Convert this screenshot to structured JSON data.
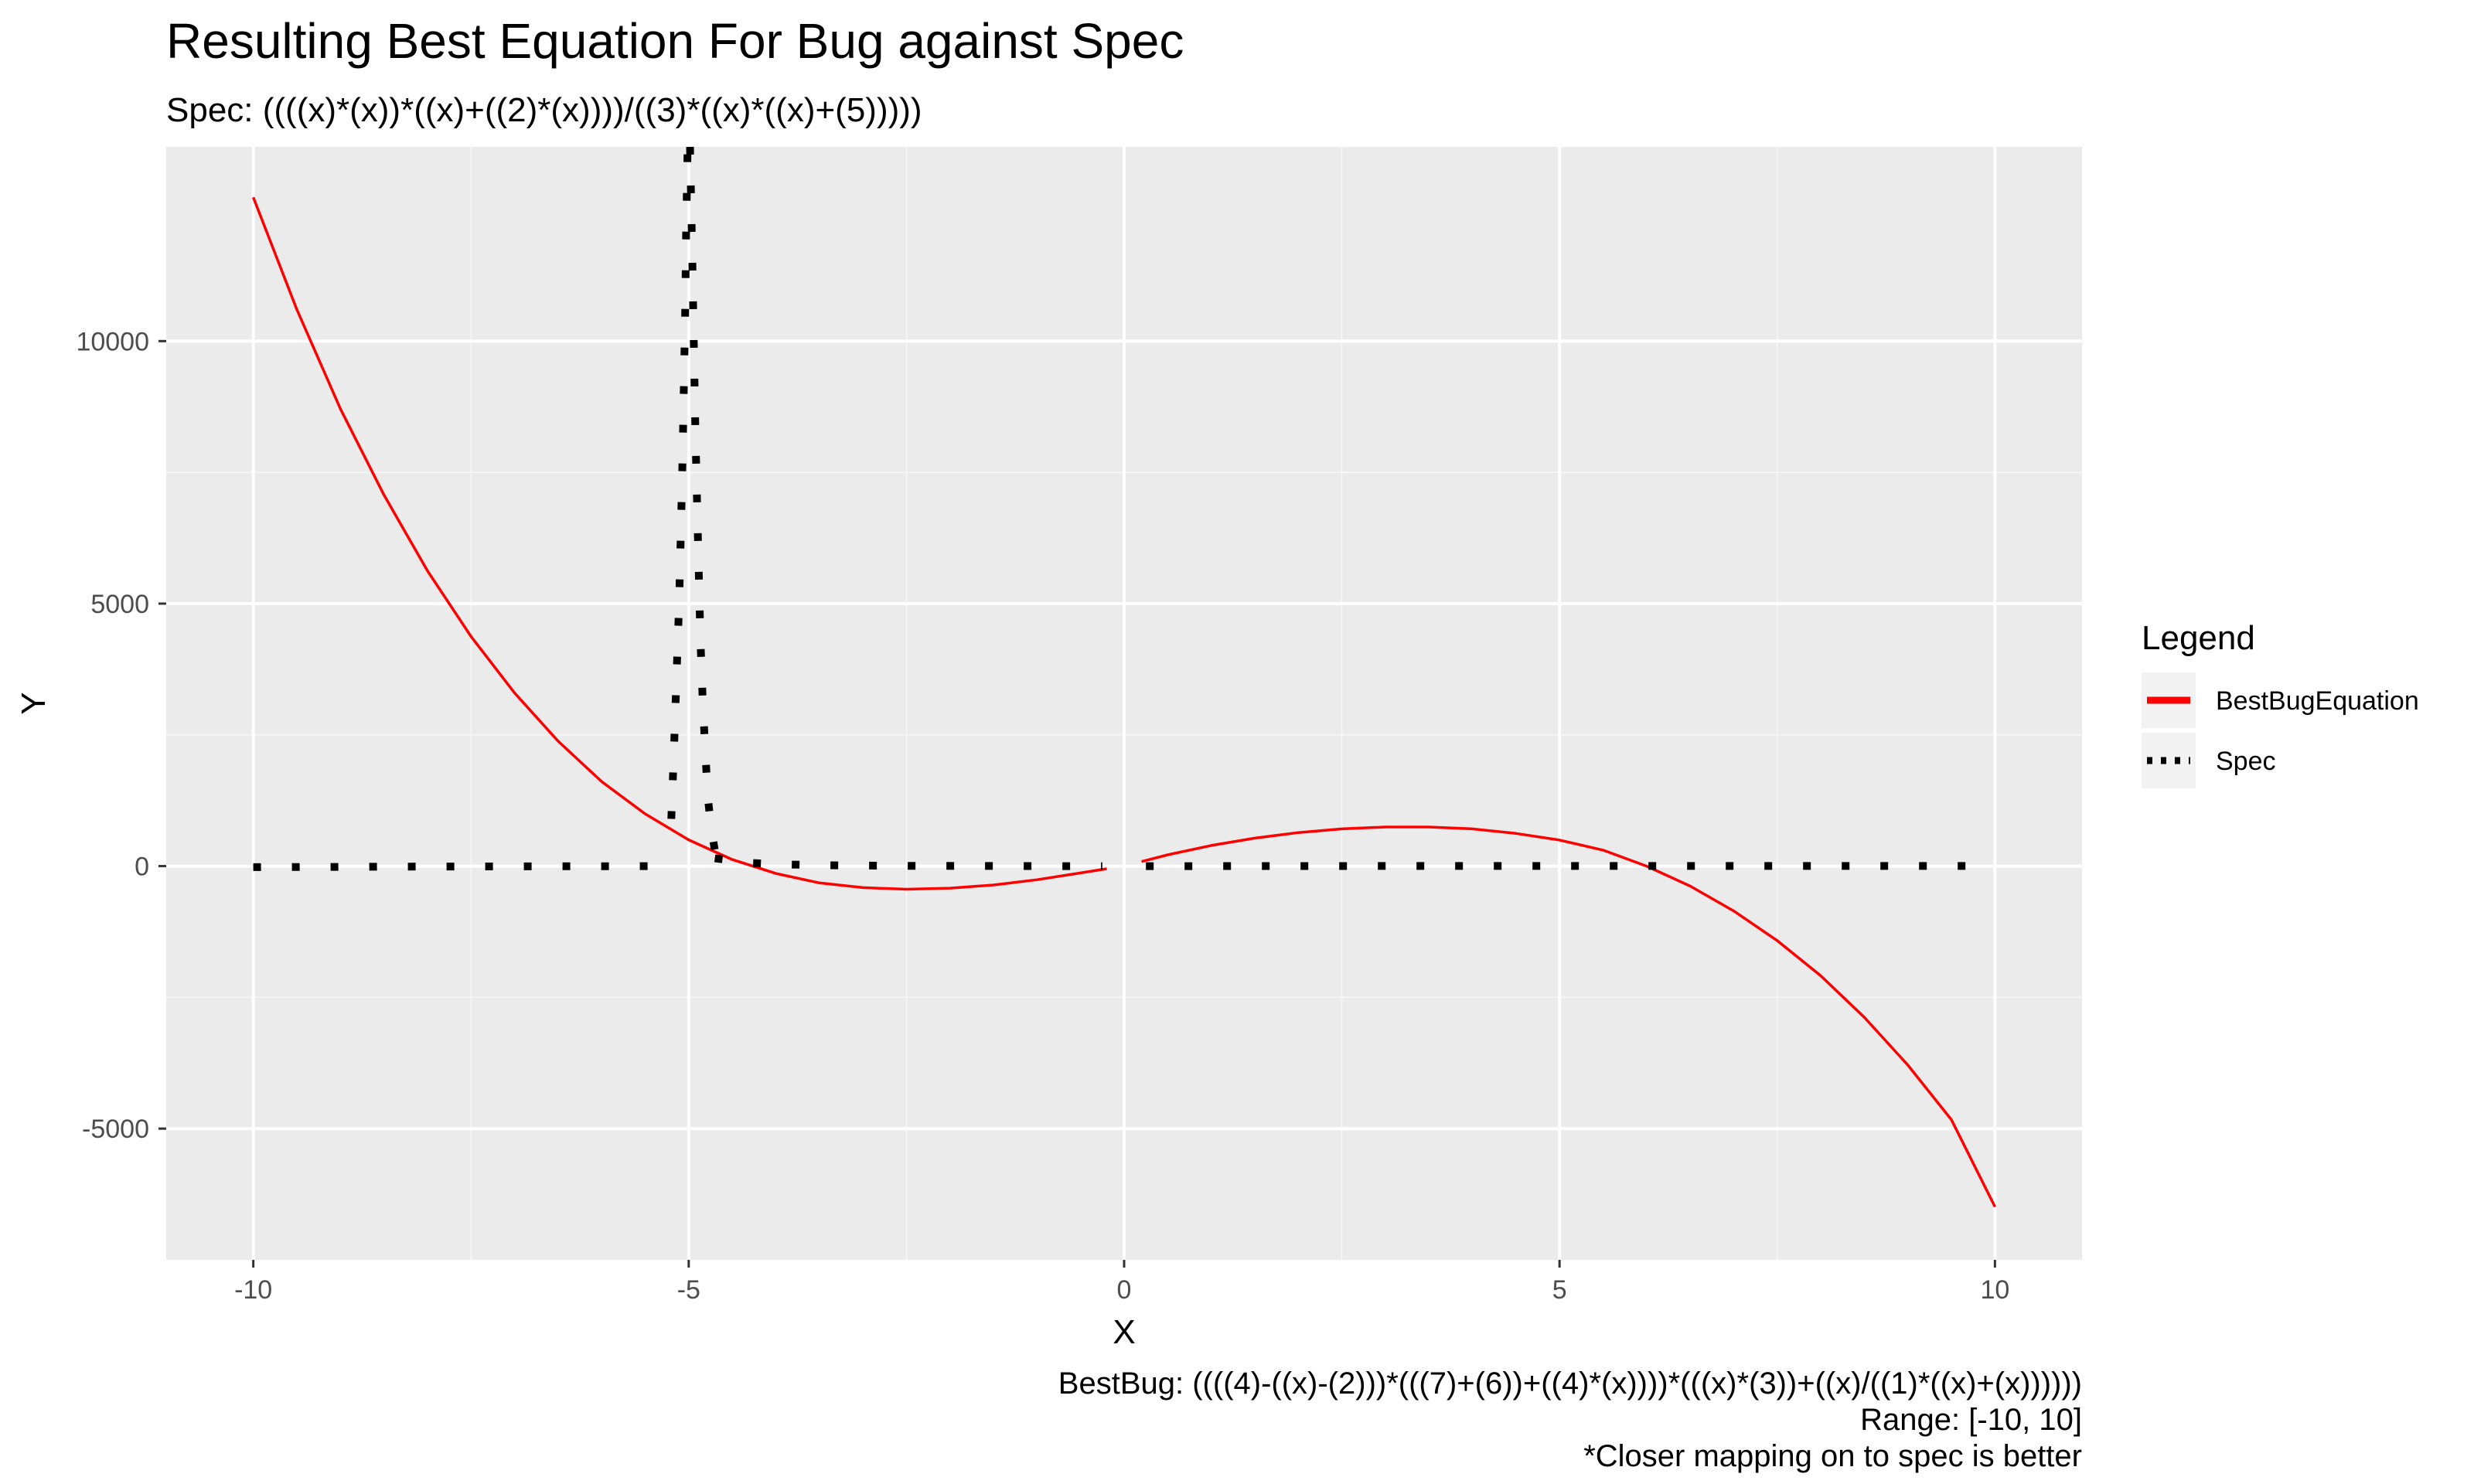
{
  "chart_data": {
    "type": "line",
    "title": "Resulting Best Equation For Bug against Spec",
    "subtitle": "Spec: ((((x)*(x))*((x)+((2)*(x))))/((3)*((x)*((x)+(5)))))",
    "xlabel": "X",
    "ylabel": "Y",
    "xlim": [
      -11,
      11
    ],
    "ylim": [
      -7500,
      13700
    ],
    "x_ticks": [
      -10,
      -5,
      0,
      5,
      10
    ],
    "x_tick_labels": [
      "-10",
      "-5",
      "0",
      "5",
      "10"
    ],
    "y_ticks": [
      -5000,
      0,
      5000,
      10000
    ],
    "y_tick_labels": [
      "-5000",
      "0",
      "5000",
      "10000"
    ],
    "grid": true,
    "legend": {
      "title": "Legend",
      "position": "right",
      "entries": [
        {
          "label": "BestBugEquation",
          "color": "#ff0000",
          "style": "solid"
        },
        {
          "label": "Spec",
          "color": "#000000",
          "style": "dotted"
        }
      ]
    },
    "series": [
      {
        "name": "BestBugEquation",
        "color": "#ff0000",
        "style": "solid",
        "segments": [
          {
            "x": [
              -10,
              -9.5,
              -9,
              -8.5,
              -8,
              -7.5,
              -7,
              -6.5,
              -6,
              -5.5,
              -5,
              -4.5,
              -4,
              -3.5,
              -3,
              -2.5,
              -2,
              -1.5,
              -1,
              -0.5,
              -0.2
            ],
            "y": [
              12740,
              10600,
              8710,
              7070,
              5625,
              4375,
              3300,
              2380,
              1610,
              995,
              500,
              125,
              -140,
              -320,
              -410,
              -440,
              -420,
              -360,
              -260,
              -130,
              -50
            ]
          },
          {
            "x": [
              0.2,
              0.5,
              1,
              1.5,
              2,
              2.5,
              3,
              3.5,
              4,
              4.5,
              5,
              5.5,
              6,
              6.5,
              7,
              7.5,
              8,
              8.5,
              9,
              9.5,
              10
            ],
            "y": [
              87,
              215,
              393,
              532,
              638,
              709,
              744,
              744,
              709,
              622,
              496,
              304,
              0,
              -380,
              -855,
              -1420,
              -2090,
              -2880,
              -3790,
              -4830,
              -6490
            ]
          }
        ]
      },
      {
        "name": "Spec",
        "color": "#000000",
        "style": "dotted",
        "segments": [
          {
            "x": [
              -10,
              -9.55,
              -9.1,
              -8.65,
              -8.2,
              -7.75,
              -7.3,
              -6.85,
              -6.4,
              -5.95,
              -5.5,
              -5.2
            ],
            "y": [
              -20,
              -18,
              -15,
              -12,
              -10,
              -8,
              -7,
              -5,
              -3,
              -2,
              -1,
              3
            ]
          },
          {
            "x": [
              -5.2,
              -5.17,
              -5.14,
              -5.11,
              -5.09,
              -5.07,
              -5.055,
              -5.04,
              -5.03,
              -5.02,
              -5.013
            ],
            "y": [
              900,
              2200,
              3600,
              5000,
              6400,
              7800,
              9200,
              10600,
              12000,
              13000,
              13700
            ]
          },
          {
            "x": [
              -4.985,
              -4.97,
              -4.955,
              -4.94,
              -4.925,
              -4.905,
              -4.885,
              -4.865,
              -4.84,
              -4.81,
              -4.78,
              -4.74,
              -4.7
            ],
            "y": [
              13700,
              12500,
              11200,
              9800,
              8400,
              7000,
              5600,
              4300,
              3200,
              2200,
              1300,
              700,
              300
            ]
          },
          {
            "x": [
              -4.7,
              -4.3,
              -3.85,
              -3.4,
              -2.95,
              -2.5,
              -2.05,
              -1.6,
              -1.15,
              -0.7,
              -0.25
            ],
            "y": [
              150,
              60,
              30,
              15,
              10,
              6,
              4,
              2,
              1,
              0,
              0
            ]
          },
          {
            "x": [
              0.25,
              0.7,
              1.15,
              1.6,
              2.05,
              2.5,
              2.95,
              3.4,
              3.85,
              4.3,
              4.75,
              5.2,
              5.65,
              6.1,
              6.55,
              7.0,
              7.45,
              7.9,
              8.35,
              8.8,
              9.25,
              9.7,
              10
            ],
            "y": [
              0,
              0,
              1,
              1,
              1,
              1,
              2,
              2,
              2,
              2,
              2,
              2,
              2,
              3,
              3,
              3,
              3,
              3,
              3,
              3,
              3,
              3,
              3
            ]
          }
        ]
      }
    ],
    "caption": [
      "BestBug: ((((4)-((x)-(2)))*(((7)+(6))+((4)*(x))))*(((x)*(3))+((x)/((1)*((x)+(x))))))",
      "Range: [-10, 10]",
      "*Closer mapping on to spec is better"
    ],
    "colors": {
      "panel_background": "#ebebeb",
      "grid_major": "#ffffff",
      "grid_minor": "#f5f5f5",
      "tick_text": "#4d4d4d",
      "legend_key_background": "#f2f2f2"
    }
  }
}
